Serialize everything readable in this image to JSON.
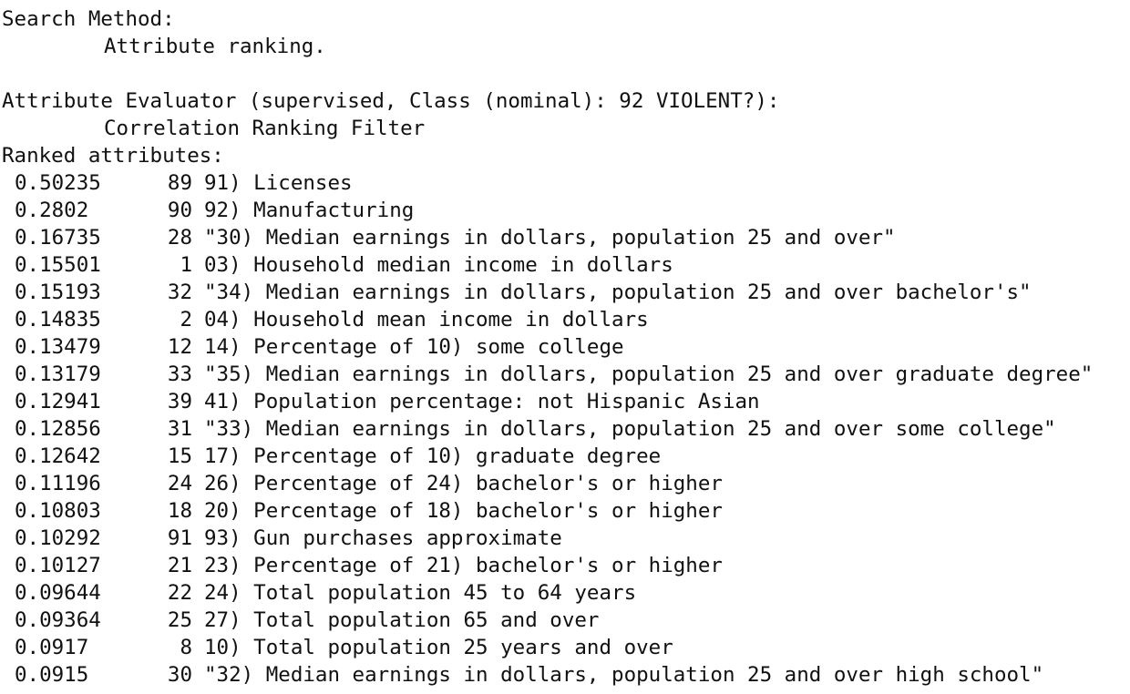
{
  "header": {
    "search_method_label": "Search Method:",
    "search_method_value": "Attribute ranking.",
    "evaluator_label": "Attribute Evaluator (supervised, Class (nominal): 92 VIOLENT?):",
    "evaluator_value": "Correlation Ranking Filter",
    "ranked_label": "Ranked attributes:"
  },
  "ranked": [
    {
      "score": "0.50235",
      "index": "89",
      "name": "91) Licenses"
    },
    {
      "score": "0.2802",
      "index": "90",
      "name": "92) Manufacturing"
    },
    {
      "score": "0.16735",
      "index": "28",
      "name": "\"30) Median earnings in dollars, population 25 and over\""
    },
    {
      "score": "0.15501",
      "index": "1",
      "name": "03) Household median income in dollars"
    },
    {
      "score": "0.15193",
      "index": "32",
      "name": "\"34) Median earnings in dollars, population 25 and over bachelor's\""
    },
    {
      "score": "0.14835",
      "index": "2",
      "name": "04) Household mean income in dollars"
    },
    {
      "score": "0.13479",
      "index": "12",
      "name": "14) Percentage of 10) some college"
    },
    {
      "score": "0.13179",
      "index": "33",
      "name": "\"35) Median earnings in dollars, population 25 and over graduate degree\""
    },
    {
      "score": "0.12941",
      "index": "39",
      "name": "41) Population percentage: not Hispanic Asian"
    },
    {
      "score": "0.12856",
      "index": "31",
      "name": "\"33) Median earnings in dollars, population 25 and over some college\""
    },
    {
      "score": "0.12642",
      "index": "15",
      "name": "17) Percentage of 10) graduate degree"
    },
    {
      "score": "0.11196",
      "index": "24",
      "name": "26) Percentage of 24) bachelor's or higher"
    },
    {
      "score": "0.10803",
      "index": "18",
      "name": "20) Percentage of 18) bachelor's or higher"
    },
    {
      "score": "0.10292",
      "index": "91",
      "name": "93) Gun purchases approximate"
    },
    {
      "score": "0.10127",
      "index": "21",
      "name": "23) Percentage of 21) bachelor's or higher"
    },
    {
      "score": "0.09644",
      "index": "22",
      "name": "24) Total population 45 to 64 years"
    },
    {
      "score": "0.09364",
      "index": "25",
      "name": "27) Total population 65 and over"
    },
    {
      "score": "0.0917",
      "index": "8",
      "name": "10) Total population 25 years and over"
    },
    {
      "score": "0.0915",
      "index": "30",
      "name": "\"32) Median earnings in dollars, population 25 and over high school\""
    }
  ]
}
